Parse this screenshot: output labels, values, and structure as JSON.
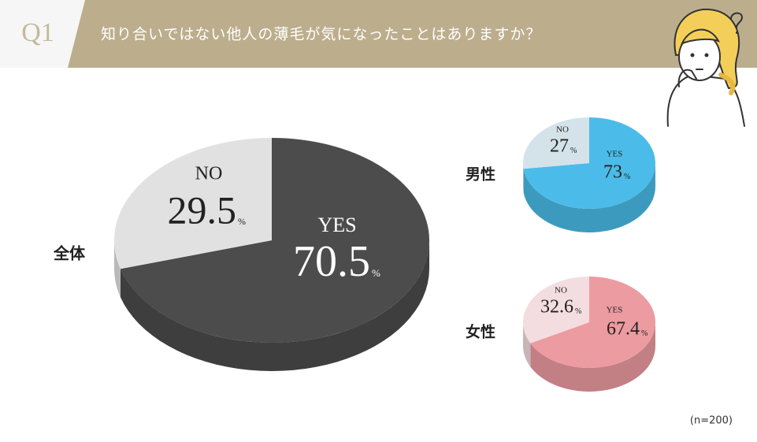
{
  "header": {
    "label": "Q1",
    "question": "知り合いではない他人の薄毛が気になったことはありますか？"
  },
  "chart_data": [
    {
      "type": "pie",
      "title": "全体",
      "categories": [
        "YES",
        "NO"
      ],
      "values": [
        70.5,
        29.5
      ],
      "unit": "%",
      "colors": [
        "#4d4c4c",
        "#e1e1e1"
      ]
    },
    {
      "type": "pie",
      "title": "男性",
      "categories": [
        "YES",
        "NO"
      ],
      "values": [
        73,
        27
      ],
      "unit": "%",
      "colors": [
        "#4bbce9",
        "#d4e2e9"
      ]
    },
    {
      "type": "pie",
      "title": "女性",
      "categories": [
        "YES",
        "NO"
      ],
      "values": [
        67.4,
        32.6
      ],
      "unit": "%",
      "colors": [
        "#ec9ba1",
        "#f3dde0"
      ]
    }
  ],
  "note": "(n=200)"
}
